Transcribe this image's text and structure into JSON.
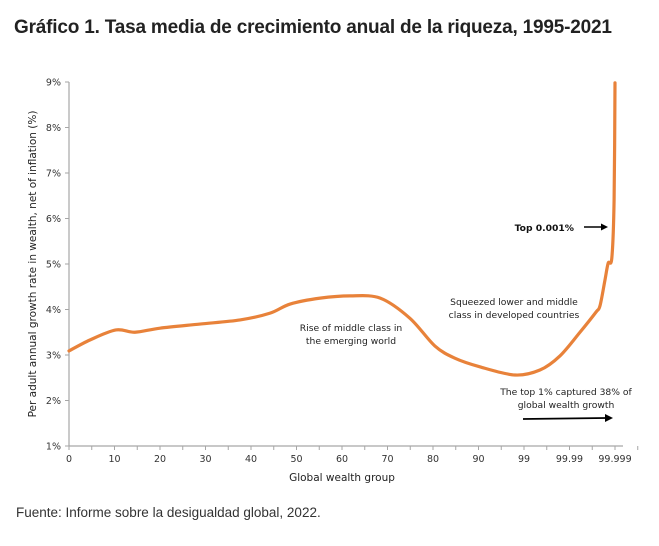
{
  "header": {
    "title": "Gráfico 1. Tasa media de crecimiento anual de la riqueza, 1995-2021"
  },
  "footer": {
    "source": "Fuente: Informe sobre la desigualdad global, 2022."
  },
  "chart_data": {
    "type": "line",
    "title": "Gráfico 1. Tasa media de crecimiento anual de la riqueza, 1995-2021",
    "xlabel": "Global wealth group",
    "ylabel": "Per adult annual growth rate in wealth, net of inflation (%)",
    "x_tick_labels": [
      "0",
      "10",
      "20",
      "30",
      "40",
      "50",
      "60",
      "70",
      "80",
      "90",
      "99",
      "99.99",
      "99.999"
    ],
    "y_tick_labels": [
      "1%",
      "2%",
      "3%",
      "4%",
      "5%",
      "6%",
      "7%",
      "8%",
      "9%"
    ],
    "ylim": [
      1,
      9
    ],
    "xlim_index": [
      0,
      12
    ],
    "grid": false,
    "line_color": "#E8823A",
    "series": [
      {
        "name": "Per adult annual growth rate",
        "x_index": [
          0,
          0.46,
          1.03,
          1.45,
          2.0,
          2.88,
          3.76,
          4.42,
          4.86,
          5.52,
          6.18,
          6.84,
          7.49,
          8.04,
          8.48,
          9.03,
          9.8,
          10.35,
          10.79,
          11.23,
          11.58,
          11.67,
          11.78,
          11.85,
          11.93,
          11.98,
          12.0
        ],
        "values": [
          3.09,
          3.33,
          3.55,
          3.5,
          3.59,
          3.68,
          3.77,
          3.92,
          4.12,
          4.25,
          4.3,
          4.25,
          3.81,
          3.2,
          2.93,
          2.74,
          2.56,
          2.67,
          2.98,
          3.5,
          3.94,
          4.08,
          4.65,
          5.02,
          5.13,
          6.4,
          8.98
        ]
      }
    ],
    "annotations": [
      {
        "text": [
          "Rise of middle class in",
          "the emerging world"
        ],
        "bold": false
      },
      {
        "text": [
          "Squeezed lower and middle",
          "class in developed countries"
        ],
        "bold": false
      },
      {
        "text": [
          "Top 0.001%"
        ],
        "bold": true,
        "arrow": "right"
      },
      {
        "text": [
          "The top 1% captured 38% of",
          "global wealth growth"
        ],
        "bold": false,
        "arrow": "right"
      }
    ]
  }
}
